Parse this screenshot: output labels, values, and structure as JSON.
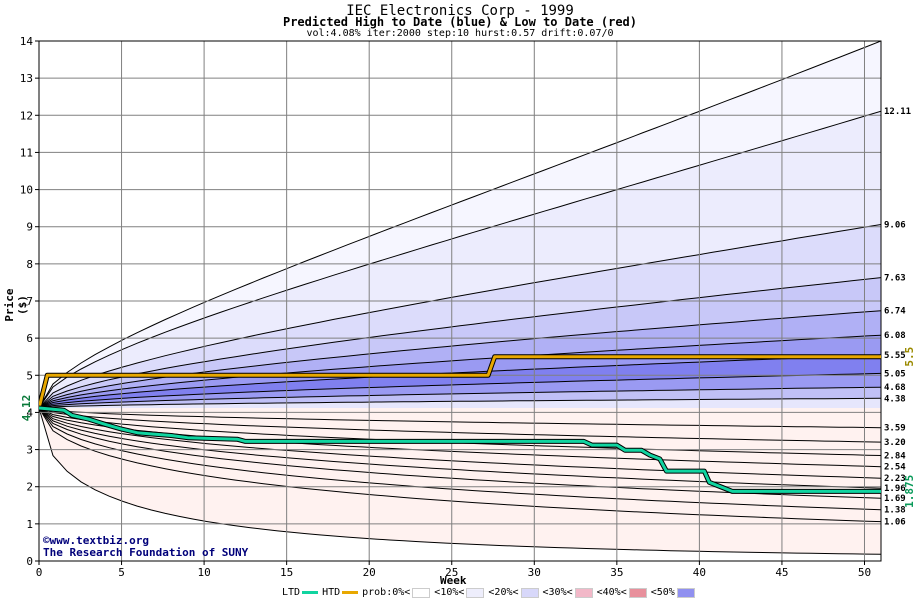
{
  "header": {
    "title": "IEC Electronics Corp - 1999",
    "subtitle": "Predicted High to Date (blue) &  Low to Date (red)",
    "params": "vol:4.08% iter:2000 step:10 hurst:0.57 drift:0.07/0"
  },
  "credits": {
    "url": "©www.textbiz.org",
    "org": "The Research Foundation of SUNY"
  },
  "legend": {
    "items": [
      {
        "label": "LTD",
        "kind": "line",
        "color": "#11d4a0"
      },
      {
        "label": "HTD",
        "kind": "line",
        "color": "#e8a800"
      },
      {
        "label": "prob:0%<",
        "kind": "swatch",
        "color": "#ffffff"
      },
      {
        "label": "<10%<",
        "kind": "swatch",
        "color": "#eeeefc"
      },
      {
        "label": "<20%<",
        "kind": "swatch",
        "color": "#d8d8fa"
      },
      {
        "label": "<30%<",
        "kind": "swatch",
        "color": "#f2b8c8"
      },
      {
        "label": "<40%<",
        "kind": "swatch",
        "color": "#e8909c"
      },
      {
        "label": "<50%",
        "kind": "swatch",
        "color": "#9090f0"
      }
    ]
  },
  "chart_data": {
    "type": "area",
    "title": "IEC Electronics Corp - 1999",
    "subtitle": "Predicted High to Date (blue) &  Low to Date (red)",
    "xlabel": "Week",
    "ylabel": "Price ($)",
    "xlim": [
      0,
      51
    ],
    "ylim": [
      0,
      14
    ],
    "x_ticks": [
      0,
      5,
      10,
      15,
      20,
      25,
      30,
      35,
      40,
      45,
      50
    ],
    "y_ticks": [
      0,
      1,
      2,
      3,
      4,
      5,
      6,
      7,
      8,
      9,
      10,
      11,
      12,
      13,
      14
    ],
    "grid": true,
    "start_price": 4.12,
    "start_label": "4.12",
    "high_percentile_curves": [
      {
        "end": 14.0,
        "color": "#f6f6ff"
      },
      {
        "end": 12.11,
        "label": "12.11",
        "color": "#ececfd"
      },
      {
        "end": 9.06,
        "label": "9.06",
        "color": "#dcdcfb"
      },
      {
        "end": 7.63,
        "label": "7.63",
        "color": "#c8c8f8"
      },
      {
        "end": 6.74,
        "label": "6.74",
        "color": "#b0b0f5"
      },
      {
        "end": 6.08,
        "label": "6.08",
        "color": "#9a9af2"
      },
      {
        "end": 5.55,
        "label": "5.55",
        "color": "#8080ef"
      },
      {
        "end": 5.05,
        "label": "5.05",
        "color": "#9a9af2"
      },
      {
        "end": 4.68,
        "label": "4.68",
        "color": "#c0c0f6"
      },
      {
        "end": 4.38,
        "label": "4.38",
        "color": "#e6e6fc"
      }
    ],
    "low_percentile_curves": [
      {
        "end": 3.59,
        "label": "3.59",
        "color": "#fde8e8"
      },
      {
        "end": 3.2,
        "label": "3.20",
        "color": "#f8c8c8"
      },
      {
        "end": 2.84,
        "label": "2.84",
        "color": "#f4b0b0"
      },
      {
        "end": 2.54,
        "label": "2.54",
        "color": "#f09a9a"
      },
      {
        "end": 2.23,
        "label": "2.23",
        "color": "#f08888"
      },
      {
        "end": 1.96,
        "label": "1.96",
        "color": "#f07878"
      },
      {
        "end": 1.69,
        "label": "1.69",
        "color": "#f4a0a0"
      },
      {
        "end": 1.38,
        "label": "1.38",
        "color": "#f8c0c0"
      },
      {
        "end": 1.06,
        "label": "1.06",
        "color": "#fcdada"
      },
      {
        "end": 0.18,
        "color": "#fff2f0"
      }
    ],
    "high_to_date": {
      "name": "HTD",
      "color": "#e8a800",
      "end_label": "5.5",
      "points": [
        [
          0,
          4.12
        ],
        [
          0.5,
          5.0
        ],
        [
          27.2,
          5.0
        ],
        [
          27.6,
          5.5
        ],
        [
          51,
          5.5
        ]
      ]
    },
    "low_to_date": {
      "name": "LTD",
      "color": "#11d4a0",
      "end_label": "1.875",
      "points": [
        [
          0,
          4.12
        ],
        [
          1.5,
          4.06
        ],
        [
          2,
          3.92
        ],
        [
          3,
          3.82
        ],
        [
          4,
          3.68
        ],
        [
          5,
          3.55
        ],
        [
          6,
          3.45
        ],
        [
          8,
          3.38
        ],
        [
          9,
          3.32
        ],
        [
          12,
          3.28
        ],
        [
          12.5,
          3.22
        ],
        [
          33,
          3.22
        ],
        [
          33.5,
          3.12
        ],
        [
          35,
          3.12
        ],
        [
          35.5,
          2.98
        ],
        [
          36.5,
          2.98
        ],
        [
          37,
          2.85
        ],
        [
          37.6,
          2.75
        ],
        [
          38,
          2.42
        ],
        [
          40.3,
          2.42
        ],
        [
          40.6,
          2.12
        ],
        [
          41.4,
          1.98
        ],
        [
          42,
          1.875
        ],
        [
          51,
          1.875
        ]
      ]
    }
  }
}
